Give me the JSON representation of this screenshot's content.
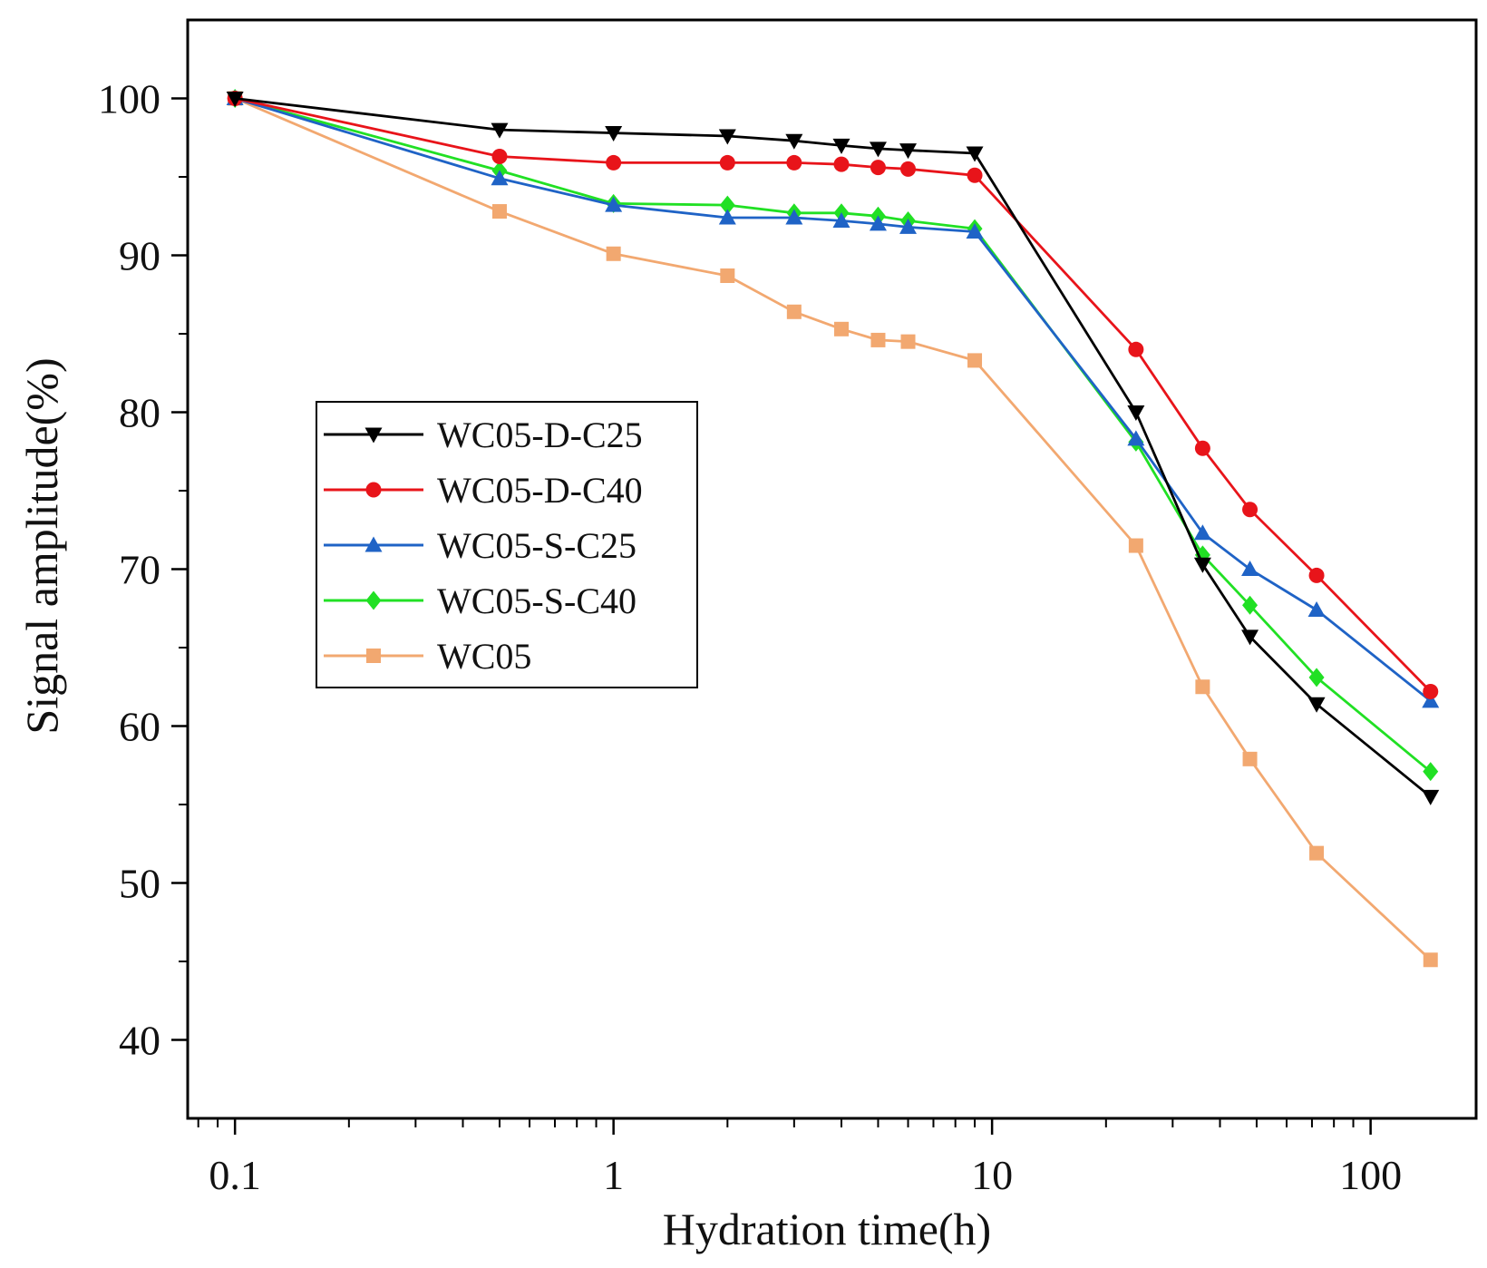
{
  "chart_data": {
    "type": "line",
    "xlabel": "Hydration time(h)",
    "ylabel": "Signal amplitude(%)",
    "x_scale": "log",
    "xlim": [
      0.075,
      190
    ],
    "ylim": [
      35,
      105
    ],
    "x_ticks": [
      0.1,
      1,
      10,
      100
    ],
    "x_tick_labels": [
      "0.1",
      "1",
      "10",
      "100"
    ],
    "y_ticks": [
      40,
      50,
      60,
      70,
      80,
      90,
      100
    ],
    "y_tick_labels": [
      "40",
      "50",
      "60",
      "70",
      "80",
      "90",
      "100"
    ],
    "grid": false,
    "legend_position": "middle-left",
    "x": [
      0.1,
      0.5,
      1,
      2,
      3,
      4,
      5,
      6,
      9,
      24,
      36,
      48,
      72,
      144
    ],
    "series": [
      {
        "name": "WC05-D-C25",
        "color": "#000000",
        "marker": "triangle-down",
        "values": [
          100,
          98.0,
          97.8,
          97.6,
          97.3,
          97.0,
          96.8,
          96.7,
          96.5,
          80.0,
          70.3,
          65.7,
          61.4,
          55.5
        ]
      },
      {
        "name": "WC05-D-C40",
        "color": "#e8141a",
        "marker": "circle",
        "values": [
          100,
          96.3,
          95.9,
          95.9,
          95.9,
          95.8,
          95.6,
          95.5,
          95.1,
          84.0,
          77.7,
          73.8,
          69.6,
          62.2
        ]
      },
      {
        "name": "WC05-S-C25",
        "color": "#1f63c6",
        "marker": "triangle-up",
        "values": [
          100,
          94.9,
          93.2,
          92.4,
          92.4,
          92.2,
          92.0,
          91.8,
          91.5,
          78.3,
          72.3,
          70.0,
          67.4,
          61.6
        ]
      },
      {
        "name": "WC05-S-C40",
        "color": "#21e024",
        "marker": "diamond",
        "values": [
          100,
          95.4,
          93.3,
          93.2,
          92.7,
          92.7,
          92.5,
          92.2,
          91.7,
          78.1,
          70.9,
          67.7,
          63.1,
          57.1
        ]
      },
      {
        "name": "WC05",
        "color": "#f2a870",
        "marker": "square",
        "values": [
          100,
          92.8,
          90.1,
          88.7,
          86.4,
          85.3,
          84.6,
          84.5,
          83.3,
          71.5,
          62.5,
          57.9,
          51.9,
          45.1
        ]
      }
    ]
  }
}
